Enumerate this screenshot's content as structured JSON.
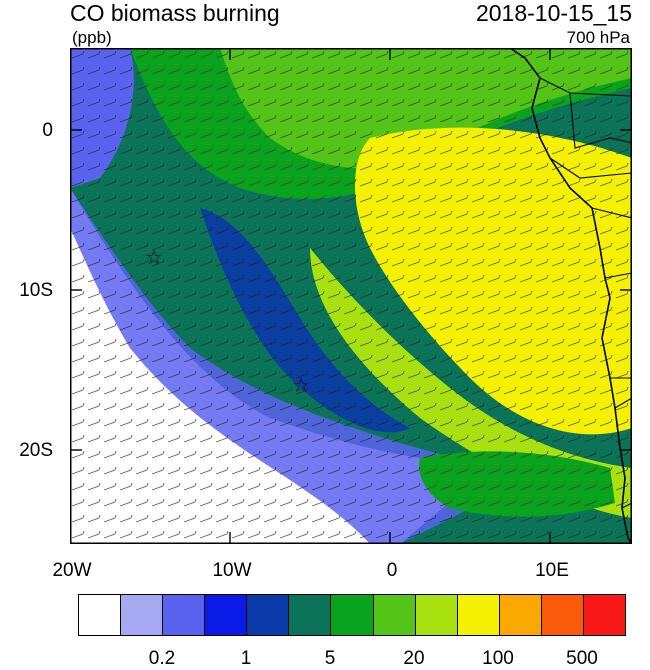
{
  "header": {
    "title": "CO biomass burning",
    "units": "(ppb)",
    "datetime": "2018-10-15_15",
    "level": "700 hPa"
  },
  "axes": {
    "x_ticks": [
      "20W",
      "10W",
      "0",
      "10E"
    ],
    "y_ticks": [
      "0",
      "10S",
      "20S"
    ]
  },
  "markers": {
    "star_1": "☆",
    "star_2": "☆"
  },
  "colorbar": {
    "colors": [
      "#ffffff",
      "#a6a8f2",
      "#5a63f0",
      "#0a1be8",
      "#0a3aa8",
      "#0a7358",
      "#0aa31e",
      "#54c418",
      "#a8e010",
      "#f4f200",
      "#fba800",
      "#fa5a0a",
      "#f81818"
    ],
    "labels": [
      "0.2",
      "1",
      "5",
      "20",
      "100",
      "500"
    ]
  },
  "colors": {
    "ocean_clean": "#ffffff",
    "land_outline": "#000000"
  }
}
